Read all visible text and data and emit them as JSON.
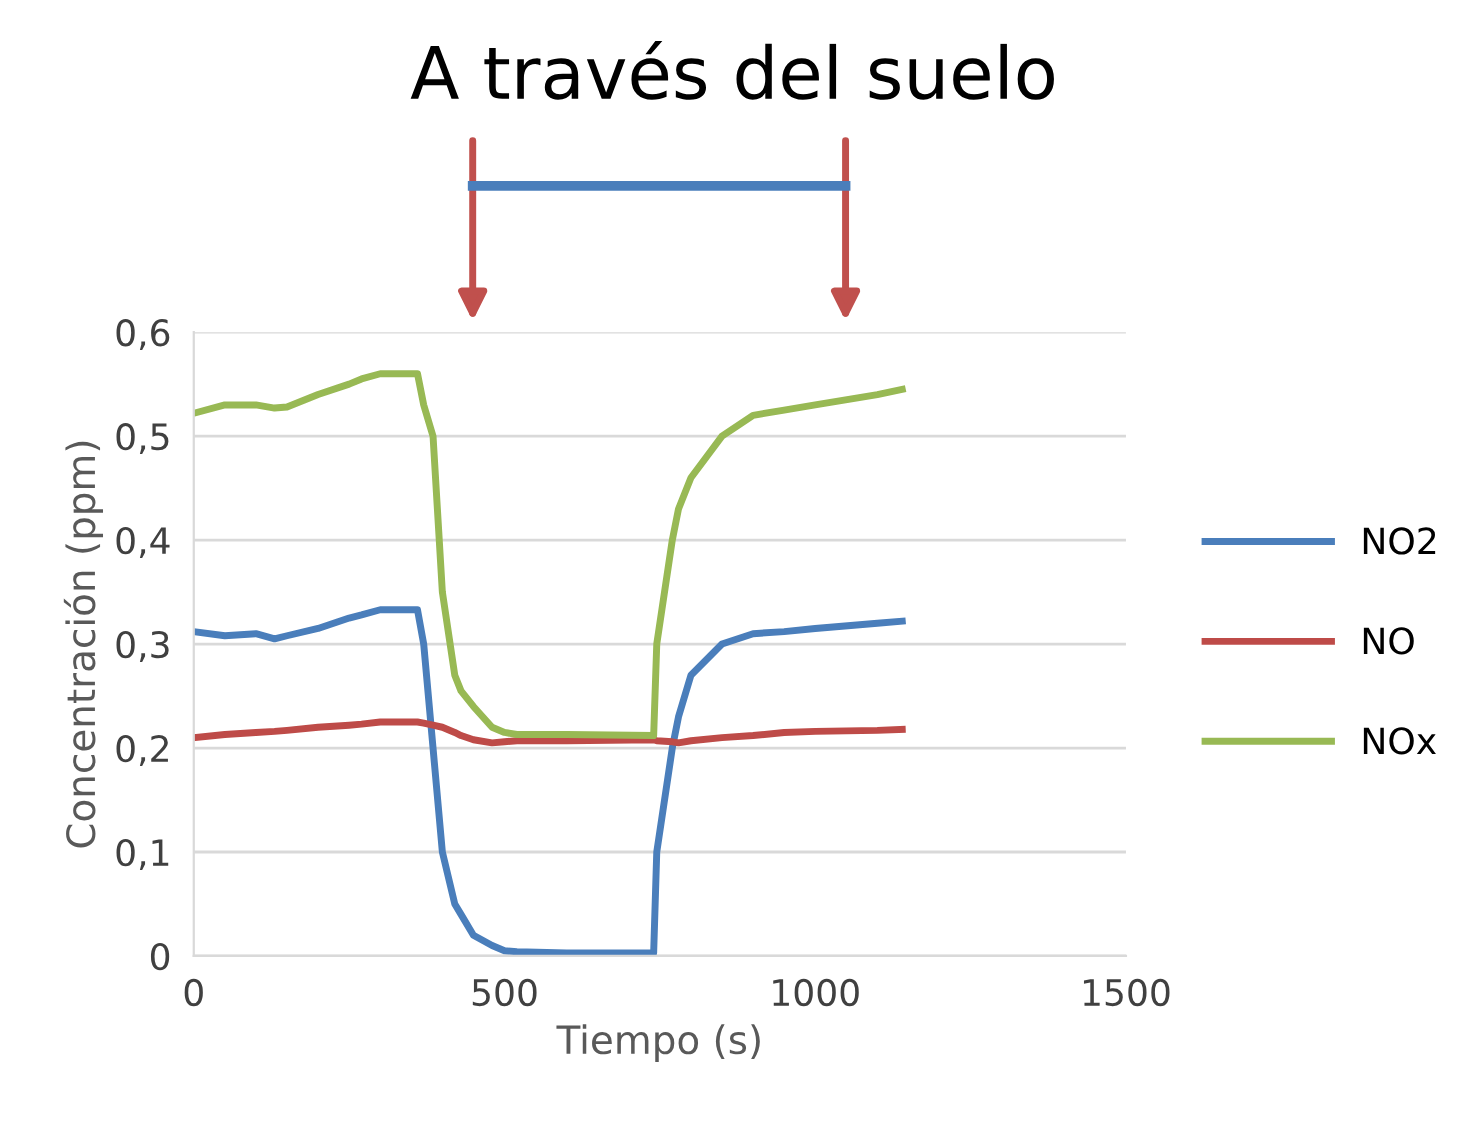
{
  "chart_data": {
    "type": "line",
    "title": "A través del suelo",
    "xlabel": "Tiempo (s)",
    "ylabel": "Concentración (ppm)",
    "x": [
      0,
      50,
      100,
      130,
      150,
      200,
      250,
      270,
      300,
      360,
      370,
      385,
      400,
      420,
      430,
      450,
      480,
      500,
      520,
      600,
      740,
      745,
      770,
      780,
      800,
      850,
      900,
      950,
      1000,
      1100,
      1140
    ],
    "series": [
      {
        "name": "NO2",
        "color": "#4a7ebb",
        "values": [
          0.312,
          0.308,
          0.31,
          0.305,
          0.308,
          0.315,
          0.325,
          0.328,
          0.333,
          0.333,
          0.3,
          0.2,
          0.1,
          0.05,
          0.04,
          0.02,
          0.01,
          0.005,
          0.004,
          0.003,
          0.003,
          0.1,
          0.2,
          0.23,
          0.27,
          0.3,
          0.31,
          0.312,
          0.315,
          0.32,
          0.322
        ]
      },
      {
        "name": "NO",
        "color": "#be4b48",
        "values": [
          0.21,
          0.213,
          0.215,
          0.216,
          0.217,
          0.22,
          0.222,
          0.223,
          0.225,
          0.225,
          0.224,
          0.222,
          0.22,
          0.215,
          0.212,
          0.208,
          0.205,
          0.206,
          0.207,
          0.207,
          0.208,
          0.207,
          0.206,
          0.205,
          0.207,
          0.21,
          0.212,
          0.215,
          0.216,
          0.217,
          0.218
        ]
      },
      {
        "name": "NOx",
        "color": "#98b954",
        "values": [
          0.522,
          0.53,
          0.53,
          0.527,
          0.528,
          0.54,
          0.55,
          0.555,
          0.56,
          0.56,
          0.53,
          0.5,
          0.35,
          0.27,
          0.255,
          0.24,
          0.22,
          0.215,
          0.213,
          0.213,
          0.212,
          0.3,
          0.4,
          0.43,
          0.46,
          0.5,
          0.52,
          0.525,
          0.53,
          0.54,
          0.545
        ]
      }
    ],
    "xlim": [
      0,
      1500
    ],
    "xticks": [
      0,
      500,
      1000,
      1500
    ],
    "ylim": [
      0,
      0.6
    ],
    "yticks": [
      {
        "value": 0,
        "label": "0"
      },
      {
        "value": 0.1,
        "label": "0,1"
      },
      {
        "value": 0.2,
        "label": "0,2"
      },
      {
        "value": 0.3,
        "label": "0,3"
      },
      {
        "value": 0.4,
        "label": "0,4"
      },
      {
        "value": 0.5,
        "label": "0,5"
      },
      {
        "value": 0.6,
        "label": "0,6"
      }
    ],
    "grid": "y",
    "legend": "right",
    "marker": "none",
    "line_style": "solid"
  }
}
